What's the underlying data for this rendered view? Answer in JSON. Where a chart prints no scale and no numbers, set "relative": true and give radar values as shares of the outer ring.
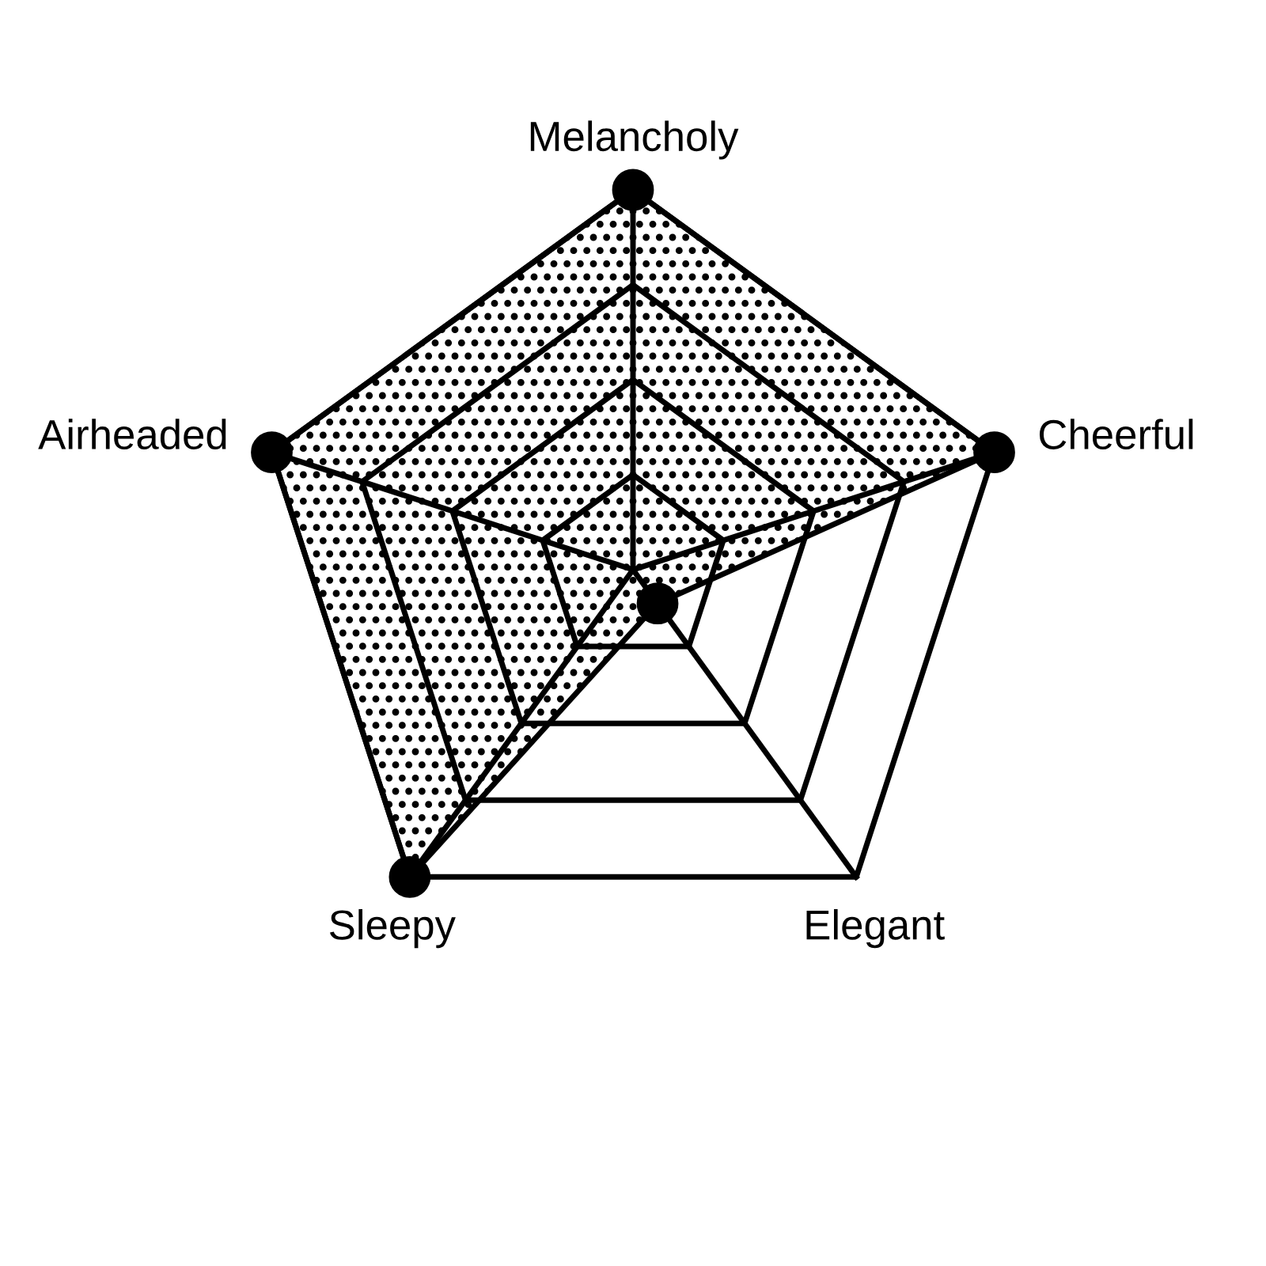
{
  "chart_data": {
    "type": "radar",
    "categories": [
      "Melancholy",
      "Cheerful",
      "Elegant",
      "Sleepy",
      "Airheaded"
    ],
    "series": [
      {
        "color": "#000000",
        "values": [
          1,
          1,
          0.11,
          1,
          1
        ]
      }
    ],
    "relative": true,
    "grid": true,
    "marker": "circle"
  }
}
